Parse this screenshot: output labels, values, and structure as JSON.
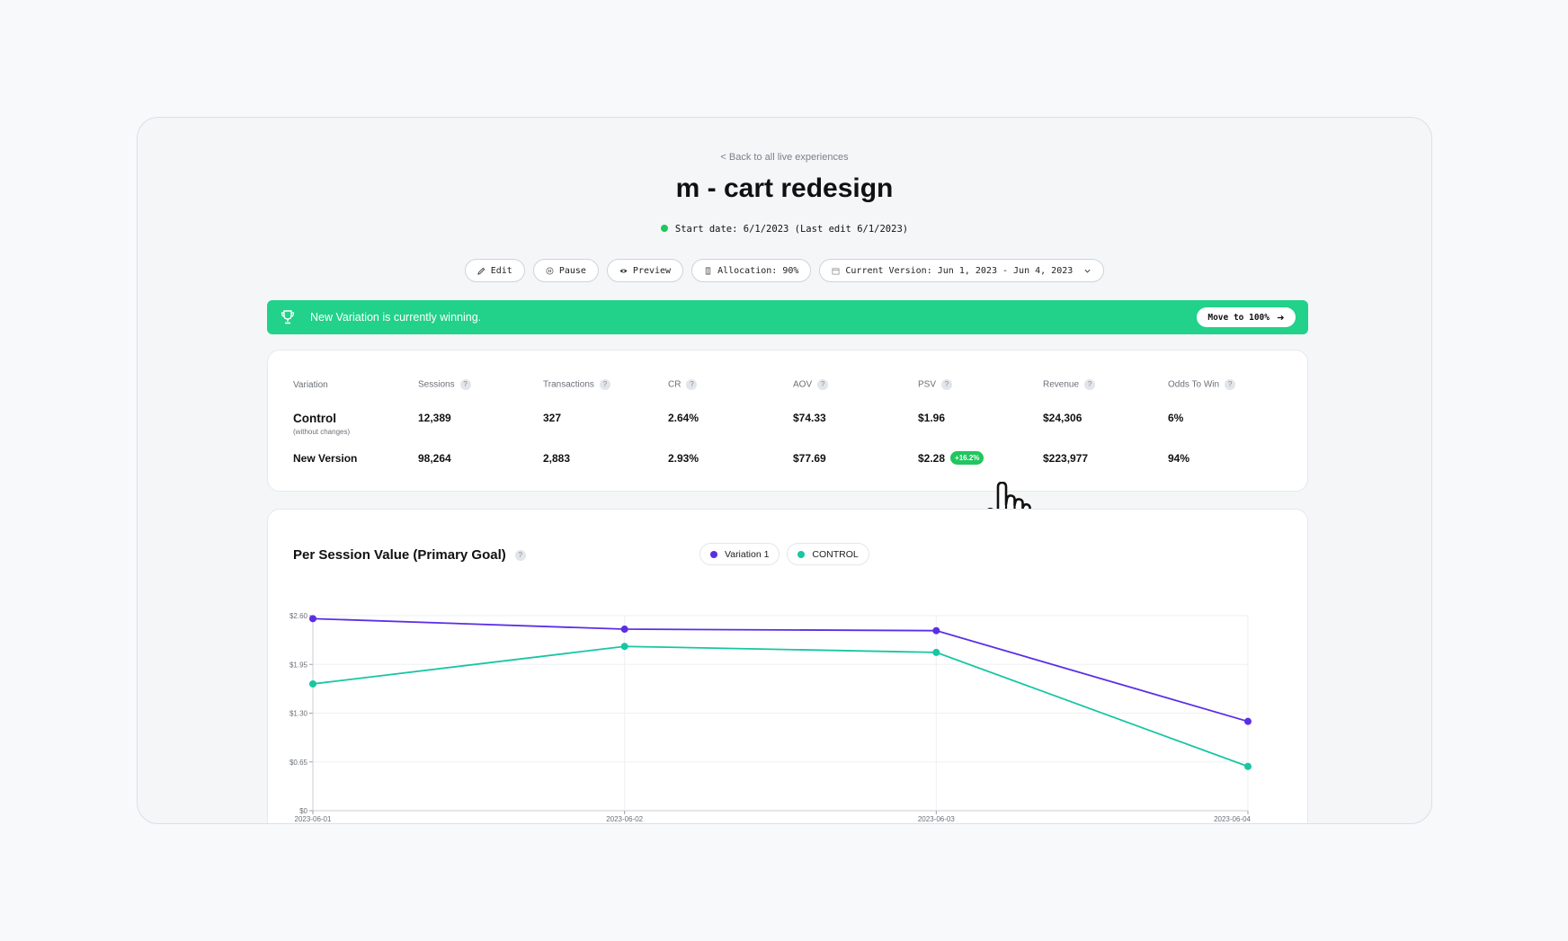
{
  "header": {
    "back_link": "< Back to all live experiences",
    "title": "m - cart redesign",
    "start_line": "Start date: 6/1/2023 (Last edit 6/1/2023)"
  },
  "toolbar": {
    "edit": "Edit",
    "pause": "Pause",
    "preview": "Preview",
    "allocation": "Allocation: 90%",
    "version": "Current Version: Jun 1, 2023 - Jun 4, 2023"
  },
  "banner": {
    "message": "New Variation is currently winning.",
    "button": "Move to 100%",
    "color": "#22d18a"
  },
  "stats": {
    "columns": [
      "Variation",
      "Sessions",
      "Transactions",
      "CR",
      "AOV",
      "PSV",
      "Revenue",
      "Odds To Win"
    ],
    "help_glyph": "?",
    "rows": [
      {
        "name": "Control",
        "sub": "(without changes)",
        "sessions": "12,389",
        "transactions": "327",
        "cr": "2.64%",
        "aov": "$74.33",
        "psv": "$1.96",
        "revenue": "$24,306",
        "odds": "6%"
      },
      {
        "name": "New Version",
        "sessions": "98,264",
        "transactions": "2,883",
        "cr": "2.93%",
        "aov": "$77.69",
        "psv": "$2.28",
        "psv_lift": "+16.2%",
        "revenue": "$223,977",
        "odds": "94%"
      }
    ]
  },
  "chart_title": "Per Session Value (Primary Goal)",
  "chart_data": {
    "type": "line",
    "title": "Per Session Value (Primary Goal)",
    "x": [
      "2023-06-01",
      "2023-06-02",
      "2023-06-03",
      "2023-06-04"
    ],
    "y_ticks": [
      "$0",
      "$0.65",
      "$1.30",
      "$1.95",
      "$2.60"
    ],
    "ylim": [
      0,
      2.6
    ],
    "grid": true,
    "legend_position": "top",
    "series": [
      {
        "name": "Variation 1",
        "color": "#5b2ee6",
        "values": [
          2.56,
          2.42,
          2.4,
          1.19
        ]
      },
      {
        "name": "CONTROL",
        "color": "#17c6a3",
        "values": [
          1.69,
          2.19,
          2.11,
          0.59
        ]
      }
    ]
  }
}
